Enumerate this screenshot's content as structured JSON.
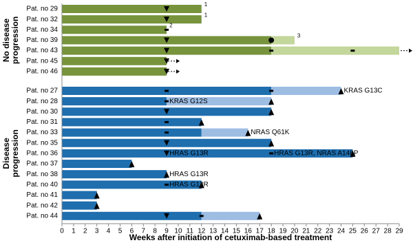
{
  "chart_data": {
    "type": "swimmer",
    "x_label": "Weeks after initiation of cetuximab-based treatment",
    "xlim": [
      0,
      29
    ],
    "xticks": [
      0,
      1,
      2,
      3,
      4,
      5,
      6,
      7,
      8,
      9,
      10,
      11,
      12,
      13,
      14,
      15,
      16,
      17,
      18,
      19,
      20,
      21,
      22,
      23,
      24,
      25,
      26,
      27,
      28,
      29
    ],
    "groups": [
      {
        "label": [
          "No disease",
          "progression"
        ],
        "color_dark": "#77933c",
        "color_light": "#c3d69b",
        "patients": [
          {
            "label": "Pat. no 29",
            "dark": 12,
            "light": 0,
            "markers": [
              {
                "shape": "down",
                "x": 9
              }
            ],
            "annotations": [
              {
                "text": "1",
                "x": 12,
                "style": "superscript"
              }
            ]
          },
          {
            "label": "Pat. no 32",
            "dark": 12,
            "light": 0,
            "markers": [
              {
                "shape": "down",
                "x": 9
              }
            ],
            "annotations": [
              {
                "text": "1",
                "x": 12,
                "style": "superscript"
              }
            ]
          },
          {
            "label": "Pat. no 34",
            "dark": 9,
            "light": 0,
            "markers": [
              {
                "shape": "dash",
                "x": 9
              }
            ],
            "annotations": [
              {
                "text": "2",
                "x": 9,
                "style": "superscript"
              }
            ]
          },
          {
            "label": "Pat. no 39",
            "dark": 18,
            "light": 2,
            "markers": [
              {
                "shape": "down",
                "x": 9
              },
              {
                "shape": "circle",
                "x": 18
              }
            ],
            "annotations": [
              {
                "text": "3",
                "x": 20,
                "style": "superscript"
              }
            ]
          },
          {
            "label": "Pat. no 43",
            "dark": 18,
            "light": 11,
            "markers": [
              {
                "shape": "down",
                "x": 9
              },
              {
                "shape": "dash",
                "x": 18
              },
              {
                "shape": "dash",
                "x": 25
              },
              {
                "shape": "arrow",
                "x": 29
              }
            ],
            "annotations": []
          },
          {
            "label": "Pat. no 45",
            "dark": 9,
            "light": 0,
            "markers": [
              {
                "shape": "down",
                "x": 9
              },
              {
                "shape": "arrow",
                "x": 9
              }
            ],
            "annotations": []
          },
          {
            "label": "Pat. no 46",
            "dark": 9,
            "light": 0,
            "markers": [
              {
                "shape": "down",
                "x": 9
              },
              {
                "shape": "arrow",
                "x": 9
              }
            ],
            "annotations": []
          }
        ]
      },
      {
        "label": [
          "Disease",
          "progression"
        ],
        "color_dark": "#1f6eae",
        "color_light": "#9dbde3",
        "patients": [
          {
            "label": "Pat. no 27",
            "dark": 18,
            "light": 6,
            "markers": [
              {
                "shape": "dash",
                "x": 9
              },
              {
                "shape": "dash",
                "x": 18
              },
              {
                "shape": "up",
                "x": 24
              }
            ],
            "annotations": [
              {
                "text": "KRAS G13C",
                "x": 24,
                "style": "inline"
              }
            ]
          },
          {
            "label": "Pat. no 28",
            "dark": 9,
            "light": 9,
            "markers": [
              {
                "shape": "dash",
                "x": 9
              },
              {
                "shape": "up",
                "x": 18
              }
            ],
            "annotations": [
              {
                "text": "KRAS G12S",
                "x": 9,
                "style": "inline"
              }
            ]
          },
          {
            "label": "Pat. no 30",
            "dark": 18,
            "light": 0,
            "markers": [
              {
                "shape": "down",
                "x": 9
              },
              {
                "shape": "up",
                "x": 18
              }
            ],
            "annotations": []
          },
          {
            "label": "Pat. no 31",
            "dark": 12,
            "light": 0,
            "markers": [
              {
                "shape": "dash",
                "x": 9
              },
              {
                "shape": "up",
                "x": 12
              }
            ],
            "annotations": []
          },
          {
            "label": "Pat. no 33",
            "dark": 12,
            "light": 4,
            "markers": [
              {
                "shape": "dash",
                "x": 9
              },
              {
                "shape": "up",
                "x": 16
              }
            ],
            "annotations": [
              {
                "text": "NRAS Q61K",
                "x": 16,
                "style": "inline"
              }
            ]
          },
          {
            "label": "Pat. no 35",
            "dark": 18,
            "light": 0,
            "markers": [
              {
                "shape": "down",
                "x": 9
              },
              {
                "shape": "up",
                "x": 18
              }
            ],
            "annotations": []
          },
          {
            "label": "Pat. no 36",
            "dark": 25,
            "light": 0,
            "markers": [
              {
                "shape": "down",
                "x": 9
              },
              {
                "shape": "dash",
                "x": 18
              },
              {
                "shape": "up",
                "x": 25
              }
            ],
            "annotations": [
              {
                "text": "HRAS G13R",
                "x": 9,
                "style": "inline"
              },
              {
                "text": "HRAS G13R, NRAS A146P",
                "x": 18,
                "style": "inline"
              }
            ]
          },
          {
            "label": "Pat. no 37",
            "dark": 6,
            "light": 0,
            "markers": [
              {
                "shape": "up",
                "x": 6
              }
            ],
            "annotations": []
          },
          {
            "label": "Pat. no 38",
            "dark": 9,
            "light": 0,
            "markers": [
              {
                "shape": "up",
                "x": 9
              }
            ],
            "annotations": [
              {
                "text": "HRAS G13R",
                "x": 9,
                "style": "inline"
              }
            ]
          },
          {
            "label": "Pat. no 40",
            "dark": 12,
            "light": 0,
            "markers": [
              {
                "shape": "dash",
                "x": 9
              },
              {
                "shape": "up",
                "x": 12
              }
            ],
            "annotations": [
              {
                "text": "HRAS G13R",
                "x": 9,
                "style": "inline"
              }
            ]
          },
          {
            "label": "Pat. no 41",
            "dark": 3,
            "light": 0,
            "markers": [
              {
                "shape": "up",
                "x": 3
              }
            ],
            "annotations": []
          },
          {
            "label": "Pat. no 42",
            "dark": 3,
            "light": 0,
            "markers": [
              {
                "shape": "up",
                "x": 3
              }
            ],
            "annotations": []
          },
          {
            "label": "Pat. no 44",
            "dark": 12,
            "light": 5,
            "markers": [
              {
                "shape": "down",
                "x": 9
              },
              {
                "shape": "dash",
                "x": 12
              },
              {
                "shape": "up",
                "x": 17
              }
            ],
            "annotations": []
          }
        ]
      }
    ]
  }
}
